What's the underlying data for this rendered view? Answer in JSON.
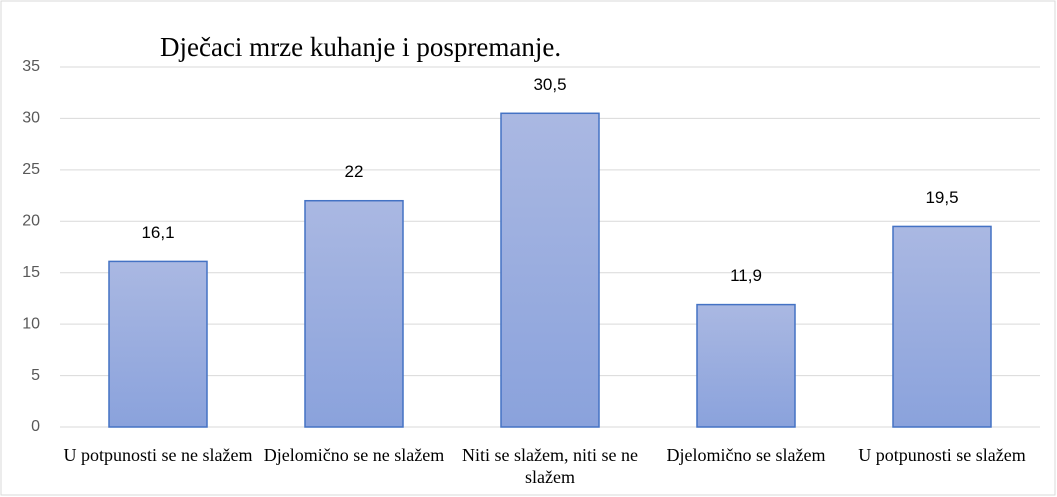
{
  "chart_data": {
    "type": "bar",
    "title": "Dječaci mrze kuhanje i pospremanje.",
    "categories": [
      "U potpunosti se ne slažem",
      "Djelomično se ne slažem",
      "Niti se slažem, niti se ne slažem",
      "Djelomično se slažem",
      "U potpunosti se slažem"
    ],
    "values": [
      16.1,
      22,
      30.5,
      11.9,
      19.5
    ],
    "value_labels": [
      "16,1",
      "22",
      "30,5",
      "11,9",
      "19,5"
    ],
    "color": "#4472c4",
    "ylim": [
      0,
      35
    ],
    "yticks": [
      0,
      5,
      10,
      15,
      20,
      25,
      30,
      35
    ],
    "grid": true
  }
}
